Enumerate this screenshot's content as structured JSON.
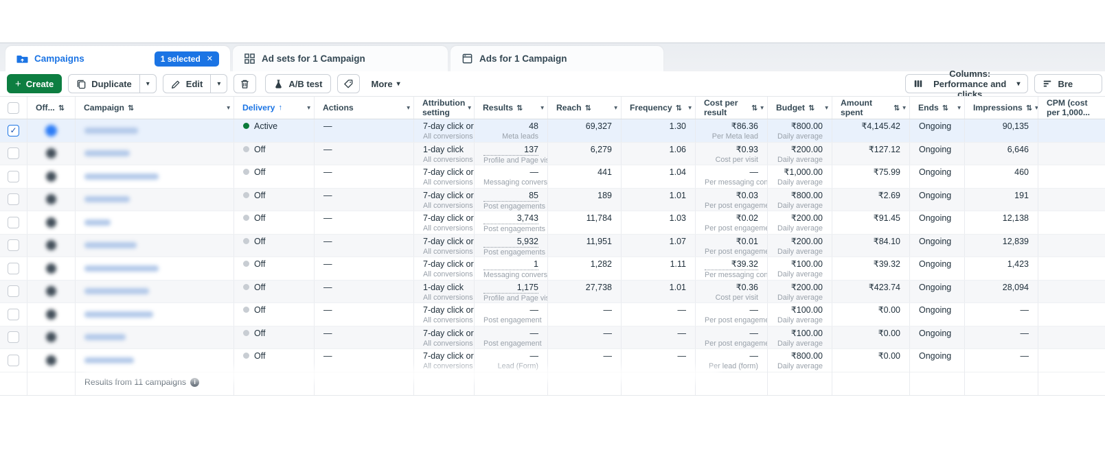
{
  "icons": {
    "check": "✓",
    "close": "✕",
    "caret": "▾",
    "sort_both": "⇅",
    "sort_asc": "↑",
    "plus": "+",
    "info": "i"
  },
  "colors": {
    "accent_blue": "#1b74e4",
    "create_green": "#0d7e41",
    "active_dot_green": "#0b7a3a",
    "selected_row": "#e9f1fc"
  },
  "tabs": [
    {
      "label": "Campaigns",
      "badge": "1 selected"
    },
    {
      "label": "Ad sets for 1 Campaign"
    },
    {
      "label": "Ads for 1 Campaign"
    }
  ],
  "toolbar": {
    "create": "Create",
    "duplicate": "Duplicate",
    "edit": "Edit",
    "ab_test": "A/B test",
    "more": "More",
    "columns": "Columns: Performance and clicks",
    "breakdown": "Bre"
  },
  "table": {
    "columns": [
      {
        "key": "select"
      },
      {
        "key": "off",
        "label": "Off...",
        "sort": "both"
      },
      {
        "key": "campaign",
        "label": "Campaign",
        "sort": "both",
        "menu": true
      },
      {
        "key": "delivery",
        "label": "Delivery",
        "sort": "asc",
        "menu": true,
        "active": true
      },
      {
        "key": "actions",
        "label": "Actions",
        "menu": true
      },
      {
        "key": "attribution",
        "label": "Attribution setting",
        "menu": true
      },
      {
        "key": "results",
        "label": "Results",
        "sort": "both",
        "menu": true
      },
      {
        "key": "reach",
        "label": "Reach",
        "sort": "both",
        "menu": true
      },
      {
        "key": "frequency",
        "label": "Frequency",
        "sort": "both",
        "menu": true
      },
      {
        "key": "cost-per-result",
        "label": "Cost per result",
        "sort": "both",
        "menu": true
      },
      {
        "key": "budget",
        "label": "Budget",
        "sort": "both",
        "menu": true
      },
      {
        "key": "amount-spent",
        "label": "Amount spent",
        "sort": "both",
        "menu": true
      },
      {
        "key": "ends",
        "label": "Ends",
        "sort": "both",
        "menu": true
      },
      {
        "key": "impressions",
        "label": "Impressions",
        "sort": "both",
        "menu": true
      },
      {
        "key": "cpm",
        "label": "CPM (cost per 1,000..."
      }
    ],
    "rows": [
      {
        "checked": true,
        "toggle": "on",
        "name_w": 78,
        "delivery": "Active",
        "actions": "—",
        "attr": "7-day click or …",
        "attr_sub": "All conversions",
        "results": "48",
        "results_sub": "Meta leads",
        "results_link": false,
        "reach": "69,327",
        "freq": "1.30",
        "cost": "₹86.36",
        "cost_sub": "Per Meta lead",
        "cost_link": false,
        "budget": "₹800.00",
        "budget_sub": "Daily average",
        "spent": "₹4,145.42",
        "ends": "Ongoing",
        "impr": "90,135"
      },
      {
        "checked": false,
        "toggle": "off",
        "name_w": 66,
        "delivery": "Off",
        "actions": "—",
        "attr": "1-day click",
        "attr_sub": "All conversions",
        "results": "137",
        "results_sub": "Profile and Page visits",
        "results_link": true,
        "reach": "6,279",
        "freq": "1.06",
        "cost": "₹0.93",
        "cost_sub": "Cost per visit",
        "cost_link": false,
        "budget": "₹200.00",
        "budget_sub": "Daily average",
        "spent": "₹127.12",
        "ends": "Ongoing",
        "impr": "6,646"
      },
      {
        "checked": false,
        "toggle": "off",
        "name_w": 108,
        "delivery": "Off",
        "actions": "—",
        "attr": "7-day click or …",
        "attr_sub": "All conversions",
        "results": "—",
        "results_sub": "Messaging conversati…",
        "results_link": false,
        "reach": "441",
        "freq": "1.04",
        "cost": "—",
        "cost_sub": "Per messaging conver…",
        "cost_link": false,
        "budget": "₹1,000.00",
        "budget_sub": "Daily average",
        "spent": "₹75.99",
        "ends": "Ongoing",
        "impr": "460"
      },
      {
        "checked": false,
        "toggle": "off",
        "name_w": 66,
        "delivery": "Off",
        "actions": "—",
        "attr": "7-day click or …",
        "attr_sub": "All conversions",
        "results": "85",
        "results_sub": "Post engagements",
        "results_link": true,
        "reach": "189",
        "freq": "1.01",
        "cost": "₹0.03",
        "cost_sub": "Per post engagement",
        "cost_link": false,
        "budget": "₹800.00",
        "budget_sub": "Daily average",
        "spent": "₹2.69",
        "ends": "Ongoing",
        "impr": "191"
      },
      {
        "checked": false,
        "toggle": "off",
        "name_w": 38,
        "delivery": "Off",
        "actions": "—",
        "attr": "7-day click or …",
        "attr_sub": "All conversions",
        "results": "3,743",
        "results_sub": "Post engagements",
        "results_link": true,
        "reach": "11,784",
        "freq": "1.03",
        "cost": "₹0.02",
        "cost_sub": "Per post engagement",
        "cost_link": false,
        "budget": "₹200.00",
        "budget_sub": "Daily average",
        "spent": "₹91.45",
        "ends": "Ongoing",
        "impr": "12,138"
      },
      {
        "checked": false,
        "toggle": "off",
        "name_w": 76,
        "delivery": "Off",
        "actions": "—",
        "attr": "7-day click or …",
        "attr_sub": "All conversions",
        "results": "5,932",
        "results_sub": "Post engagements",
        "results_link": true,
        "reach": "11,951",
        "freq": "1.07",
        "cost": "₹0.01",
        "cost_sub": "Per post engagement",
        "cost_link": false,
        "budget": "₹200.00",
        "budget_sub": "Daily average",
        "spent": "₹84.10",
        "ends": "Ongoing",
        "impr": "12,839"
      },
      {
        "checked": false,
        "toggle": "off",
        "name_w": 108,
        "delivery": "Off",
        "actions": "—",
        "attr": "7-day click or …",
        "attr_sub": "All conversions",
        "results": "1",
        "results_sub": "Messaging conversat…",
        "results_link": true,
        "reach": "1,282",
        "freq": "1.11",
        "cost": "₹39.32",
        "cost_sub": "Per messaging conve…",
        "cost_link": true,
        "budget": "₹100.00",
        "budget_sub": "Daily average",
        "spent": "₹39.32",
        "ends": "Ongoing",
        "impr": "1,423"
      },
      {
        "checked": false,
        "toggle": "off",
        "name_w": 94,
        "delivery": "Off",
        "actions": "—",
        "attr": "1-day click",
        "attr_sub": "All conversions",
        "results": "1,175",
        "results_sub": "Profile and Page visits",
        "results_link": true,
        "reach": "27,738",
        "freq": "1.01",
        "cost": "₹0.36",
        "cost_sub": "Cost per visit",
        "cost_link": false,
        "budget": "₹200.00",
        "budget_sub": "Daily average",
        "spent": "₹423.74",
        "ends": "Ongoing",
        "impr": "28,094"
      },
      {
        "checked": false,
        "toggle": "off",
        "name_w": 100,
        "delivery": "Off",
        "actions": "—",
        "attr": "7-day click or …",
        "attr_sub": "All conversions",
        "results": "—",
        "results_sub": "Post engagement",
        "results_link": false,
        "reach": "—",
        "freq": "—",
        "cost": "—",
        "cost_sub": "Per post engagement",
        "cost_link": false,
        "budget": "₹100.00",
        "budget_sub": "Daily average",
        "spent": "₹0.00",
        "ends": "Ongoing",
        "impr": "—"
      },
      {
        "checked": false,
        "toggle": "off",
        "name_w": 60,
        "delivery": "Off",
        "actions": "—",
        "attr": "7-day click or …",
        "attr_sub": "All conversions",
        "results": "—",
        "results_sub": "Post engagement",
        "results_link": false,
        "reach": "—",
        "freq": "—",
        "cost": "—",
        "cost_sub": "Per post engagement",
        "cost_link": false,
        "budget": "₹100.00",
        "budget_sub": "Daily average",
        "spent": "₹0.00",
        "ends": "Ongoing",
        "impr": "—"
      },
      {
        "checked": false,
        "toggle": "off",
        "name_w": 72,
        "delivery": "Off",
        "actions": "—",
        "attr": "7-day click or …",
        "attr_sub": "All conversions",
        "results": "—",
        "results_sub": "Lead (Form)",
        "results_link": false,
        "reach": "—",
        "freq": "—",
        "cost": "—",
        "cost_sub": "Per lead (form)",
        "cost_link": false,
        "budget": "₹800.00",
        "budget_sub": "Daily average",
        "spent": "₹0.00",
        "ends": "Ongoing",
        "impr": "—"
      }
    ],
    "footer": {
      "text": "Results from 11 campaigns"
    }
  }
}
